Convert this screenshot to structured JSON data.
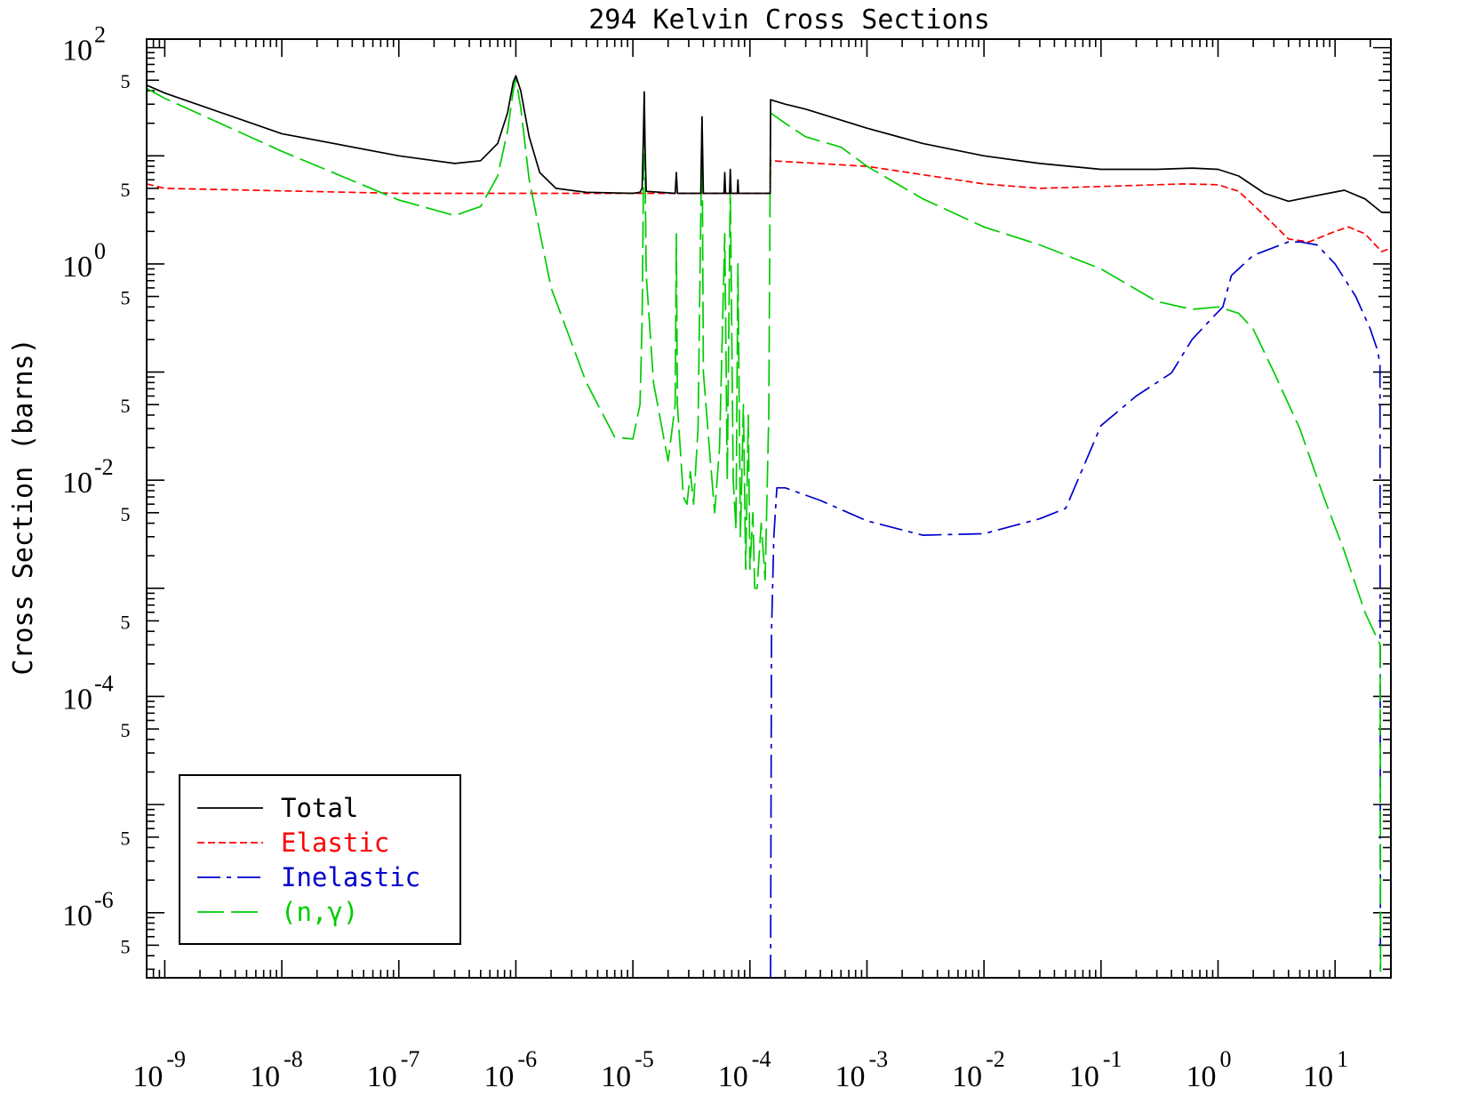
{
  "chart_data": {
    "type": "line",
    "title": "294 Kelvin Cross Sections",
    "xlabel": "",
    "ylabel": "Cross Section (barns)",
    "x_scale": "log",
    "y_scale": "log",
    "xlim": [
      7e-10,
      30
    ],
    "ylim": [
      2.5e-07,
      120
    ],
    "x_ticks": [
      {
        "value": 1e-09,
        "label": "10",
        "exp": "-9"
      },
      {
        "value": 1e-08,
        "label": "10",
        "exp": "-8"
      },
      {
        "value": 1e-07,
        "label": "10",
        "exp": "-7"
      },
      {
        "value": 1e-06,
        "label": "10",
        "exp": "-6"
      },
      {
        "value": 1e-05,
        "label": "10",
        "exp": "-5"
      },
      {
        "value": 0.0001,
        "label": "10",
        "exp": "-4"
      },
      {
        "value": 0.001,
        "label": "10",
        "exp": "-3"
      },
      {
        "value": 0.01,
        "label": "10",
        "exp": "-2"
      },
      {
        "value": 0.1,
        "label": "10",
        "exp": "-1"
      },
      {
        "value": 1,
        "label": "10",
        "exp": "0"
      },
      {
        "value": 10,
        "label": "10",
        "exp": "1"
      }
    ],
    "y_ticks": [
      {
        "value": 100,
        "label": "10",
        "exp": "2"
      },
      {
        "value": 1,
        "label": "10",
        "exp": "0"
      },
      {
        "value": 0.01,
        "label": "10",
        "exp": "-2"
      },
      {
        "value": 0.0001,
        "label": "10",
        "exp": "-4"
      },
      {
        "value": 1e-06,
        "label": "10",
        "exp": "-6"
      }
    ],
    "y_minor_labels": [
      {
        "value": 50,
        "label": "5"
      },
      {
        "value": 5,
        "label": "5"
      },
      {
        "value": 0.5,
        "label": "5"
      },
      {
        "value": 0.05,
        "label": "5"
      },
      {
        "value": 0.005,
        "label": "5"
      },
      {
        "value": 0.0005,
        "label": "5"
      },
      {
        "value": 5e-05,
        "label": "5"
      },
      {
        "value": 5e-06,
        "label": "5"
      },
      {
        "value": 5e-07,
        "label": "5"
      }
    ],
    "legend": {
      "placement": "bottom-left",
      "entries": [
        {
          "name": "Total",
          "color": "#000000",
          "dash": "solid"
        },
        {
          "name": "Elastic",
          "color": "#ff0000",
          "dash": "short-dash"
        },
        {
          "name": "Inelastic",
          "color": "#0000cc",
          "dash": "dash-dot"
        },
        {
          "name": "(n,γ)",
          "color": "#00cc00",
          "dash": "long-dash"
        }
      ]
    },
    "series": [
      {
        "name": "Total",
        "color": "#000000",
        "points": [
          [
            7e-10,
            45
          ],
          [
            1e-09,
            38
          ],
          [
            1e-08,
            16
          ],
          [
            1e-07,
            10
          ],
          [
            3e-07,
            8.5
          ],
          [
            5e-07,
            9.0
          ],
          [
            7e-07,
            13
          ],
          [
            8.5e-07,
            25
          ],
          [
            9.5e-07,
            48
          ],
          [
            1e-06,
            55
          ],
          [
            1.1e-06,
            40
          ],
          [
            1.3e-06,
            15
          ],
          [
            1.6e-06,
            7
          ],
          [
            2.2e-06,
            5.0
          ],
          [
            4e-06,
            4.6
          ],
          [
            1e-05,
            4.5
          ],
          [
            1.15e-05,
            4.6
          ],
          [
            1.2e-05,
            5.0
          ],
          [
            1.23e-05,
            15
          ],
          [
            1.25e-05,
            39
          ],
          [
            1.27e-05,
            12
          ],
          [
            1.3e-05,
            4.7
          ],
          [
            2.3e-05,
            4.5
          ],
          [
            2.35e-05,
            7
          ],
          [
            2.4e-05,
            4.5
          ],
          [
            3.8e-05,
            4.5
          ],
          [
            3.9e-05,
            23
          ],
          [
            4e-05,
            4.5
          ],
          [
            6e-05,
            4.5
          ],
          [
            6.1e-05,
            7
          ],
          [
            6.2e-05,
            4.5
          ],
          [
            6.7e-05,
            4.5
          ],
          [
            6.8e-05,
            7.5
          ],
          [
            6.9e-05,
            4.5
          ],
          [
            7.8e-05,
            4.5
          ],
          [
            7.9e-05,
            6
          ],
          [
            8e-05,
            4.5
          ],
          [
            0.000149,
            4.5
          ],
          [
            0.00015,
            33
          ],
          [
            0.0002,
            30
          ],
          [
            0.0003,
            27
          ],
          [
            0.001,
            18
          ],
          [
            0.003,
            13
          ],
          [
            0.01,
            10
          ],
          [
            0.03,
            8.5
          ],
          [
            0.1,
            7.5
          ],
          [
            0.3,
            7.5
          ],
          [
            0.6,
            7.7
          ],
          [
            1.0,
            7.5
          ],
          [
            1.5,
            6.5
          ],
          [
            2.5,
            4.5
          ],
          [
            4,
            3.8
          ],
          [
            7,
            4.3
          ],
          [
            12,
            4.8
          ],
          [
            18,
            4.0
          ],
          [
            25,
            3.0
          ],
          [
            30,
            3.0
          ]
        ]
      },
      {
        "name": "Elastic",
        "color": "#ff0000",
        "points": [
          [
            7e-10,
            5.5
          ],
          [
            1e-09,
            5.0
          ],
          [
            1e-07,
            4.5
          ],
          [
            1e-06,
            4.5
          ],
          [
            1e-05,
            4.5
          ],
          [
            0.000149,
            4.5
          ],
          [
            0.00015,
            9.0
          ],
          [
            0.001,
            8.0
          ],
          [
            0.01,
            5.5
          ],
          [
            0.03,
            5.0
          ],
          [
            0.1,
            5.2
          ],
          [
            0.5,
            5.5
          ],
          [
            1.0,
            5.4
          ],
          [
            1.5,
            4.7
          ],
          [
            2.5,
            2.8
          ],
          [
            4,
            1.7
          ],
          [
            6,
            1.6
          ],
          [
            10,
            2.0
          ],
          [
            13,
            2.2
          ],
          [
            18,
            1.9
          ],
          [
            25,
            1.3
          ],
          [
            30,
            1.4
          ]
        ]
      },
      {
        "name": "Inelastic",
        "color": "#0000cc",
        "points": [
          [
            0.00015,
            2.5e-07
          ],
          [
            0.000153,
            0.0004
          ],
          [
            0.00016,
            0.003
          ],
          [
            0.00017,
            0.0085
          ],
          [
            0.0002,
            0.0085
          ],
          [
            0.0004,
            0.0065
          ],
          [
            0.001,
            0.0042
          ],
          [
            0.003,
            0.0031
          ],
          [
            0.01,
            0.0032
          ],
          [
            0.03,
            0.0044
          ],
          [
            0.05,
            0.0055
          ],
          [
            0.1,
            0.032
          ],
          [
            0.2,
            0.06
          ],
          [
            0.4,
            0.098
          ],
          [
            0.6,
            0.2
          ],
          [
            0.9,
            0.32
          ],
          [
            1.1,
            0.4
          ],
          [
            1.3,
            0.78
          ],
          [
            2,
            1.2
          ],
          [
            4,
            1.6
          ],
          [
            5,
            1.6
          ],
          [
            7,
            1.5
          ],
          [
            10,
            1.0
          ],
          [
            15,
            0.5
          ],
          [
            20,
            0.25
          ],
          [
            23,
            0.16
          ],
          [
            24.2,
            0.12
          ],
          [
            24.4,
            3e-07
          ]
        ]
      },
      {
        "name": "(n,γ)",
        "color": "#00cc00",
        "points": [
          [
            7e-10,
            42
          ],
          [
            1e-09,
            34
          ],
          [
            1e-08,
            11
          ],
          [
            1e-07,
            3.9
          ],
          [
            3e-07,
            2.8
          ],
          [
            5e-07,
            3.4
          ],
          [
            7e-07,
            6.5
          ],
          [
            8.5e-07,
            17
          ],
          [
            9.5e-07,
            40
          ],
          [
            1e-06,
            52
          ],
          [
            1.1e-06,
            28
          ],
          [
            1.3e-06,
            6
          ],
          [
            2e-06,
            0.6
          ],
          [
            4e-06,
            0.08
          ],
          [
            7e-06,
            0.025
          ],
          [
            1e-05,
            0.024
          ],
          [
            1.15e-05,
            0.05
          ],
          [
            1.2e-05,
            0.3
          ],
          [
            1.25e-05,
            37
          ],
          [
            1.3e-05,
            0.8
          ],
          [
            1.5e-05,
            0.08
          ],
          [
            2e-05,
            0.015
          ],
          [
            2.3e-05,
            0.05
          ],
          [
            2.35e-05,
            1.9
          ],
          [
            2.4e-05,
            0.05
          ],
          [
            2.7e-05,
            0.007
          ],
          [
            2.9e-05,
            0.006
          ],
          [
            3.1e-05,
            0.012
          ],
          [
            3.3e-05,
            0.006
          ],
          [
            3.6e-05,
            0.03
          ],
          [
            3.9e-05,
            22
          ],
          [
            4e-05,
            0.1
          ],
          [
            4.5e-05,
            0.02
          ],
          [
            5e-05,
            0.005
          ],
          [
            5.5e-05,
            0.02
          ],
          [
            6.1e-05,
            1.9
          ],
          [
            6.4e-05,
            0.01
          ],
          [
            6.8e-05,
            5.5
          ],
          [
            7.2e-05,
            0.01
          ],
          [
            7.6e-05,
            0.0035
          ],
          [
            7.9e-05,
            1.0
          ],
          [
            8.3e-05,
            0.003
          ],
          [
            8.8e-05,
            0.05
          ],
          [
            9.2e-05,
            0.0015
          ],
          [
            9.7e-05,
            0.04
          ],
          [
            0.0001,
            0.0015
          ],
          [
            0.000106,
            0.005
          ],
          [
            0.00011,
            0.001
          ],
          [
            0.000115,
            0.001
          ],
          [
            0.000125,
            0.004
          ],
          [
            0.000135,
            0.0012
          ],
          [
            0.000145,
            0.04
          ],
          [
            0.00015,
            25
          ],
          [
            0.0002,
            20
          ],
          [
            0.0003,
            15
          ],
          [
            0.0006,
            12
          ],
          [
            0.001,
            8
          ],
          [
            0.003,
            4
          ],
          [
            0.01,
            2.2
          ],
          [
            0.03,
            1.5
          ],
          [
            0.1,
            0.9
          ],
          [
            0.3,
            0.45
          ],
          [
            0.6,
            0.38
          ],
          [
            1.0,
            0.4
          ],
          [
            1.5,
            0.35
          ],
          [
            2,
            0.25
          ],
          [
            3,
            0.1
          ],
          [
            5,
            0.03
          ],
          [
            8,
            0.007
          ],
          [
            12,
            0.0022
          ],
          [
            18,
            0.0006
          ],
          [
            24.3,
            0.0003
          ],
          [
            24.5,
            2.5e-07
          ]
        ]
      }
    ]
  }
}
